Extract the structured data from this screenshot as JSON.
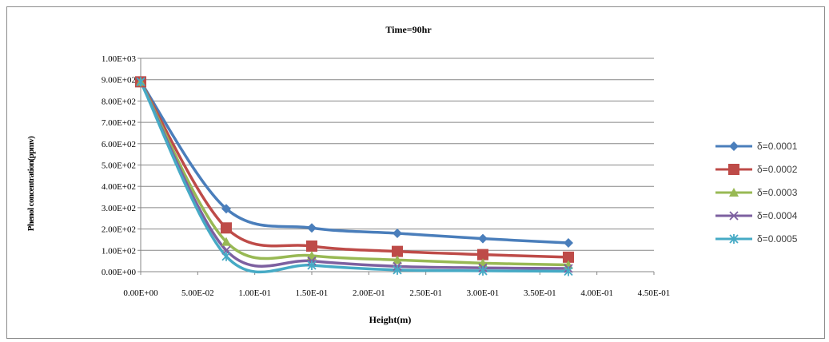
{
  "chart_data": {
    "type": "line",
    "title": "Time=90hr",
    "xlabel": "Height(m)",
    "ylabel": "Phenol concentration(ppmv)",
    "x_ticks": [
      "0.00E+00",
      "5.00E-02",
      "1.00E-01",
      "1.50E-01",
      "2.00E-01",
      "2.50E-01",
      "3.00E-01",
      "3.50E-01",
      "4.00E-01",
      "4.50E-01"
    ],
    "y_ticks": [
      "0.00E+00",
      "1.00E+02",
      "2.00E+02",
      "3.00E+02",
      "4.00E+02",
      "5.00E+02",
      "6.00E+02",
      "7.00E+02",
      "8.00E+02",
      "9.00E+02",
      "1.00E+03"
    ],
    "xlim": [
      0,
      0.45
    ],
    "ylim": [
      0,
      1000
    ],
    "grid": true,
    "legend_position": "right",
    "x": [
      0.0,
      0.075,
      0.15,
      0.225,
      0.3,
      0.375
    ],
    "series": [
      {
        "name": "δ=0.0001",
        "color": "#4a7ebb",
        "marker": "diamond",
        "values": [
          890,
          295,
          205,
          180,
          155,
          135
        ]
      },
      {
        "name": "δ=0.0002",
        "color": "#be4b48",
        "marker": "square",
        "values": [
          890,
          205,
          120,
          95,
          80,
          68
        ]
      },
      {
        "name": "δ=0.0003",
        "color": "#98b954",
        "marker": "triangle",
        "values": [
          890,
          140,
          75,
          55,
          40,
          32
        ]
      },
      {
        "name": "δ=0.0004",
        "color": "#7d60a0",
        "marker": "x",
        "values": [
          890,
          100,
          50,
          25,
          18,
          15
        ]
      },
      {
        "name": "δ=0.0005",
        "color": "#46aac5",
        "marker": "star",
        "values": [
          890,
          72,
          30,
          8,
          4,
          2
        ]
      }
    ]
  }
}
